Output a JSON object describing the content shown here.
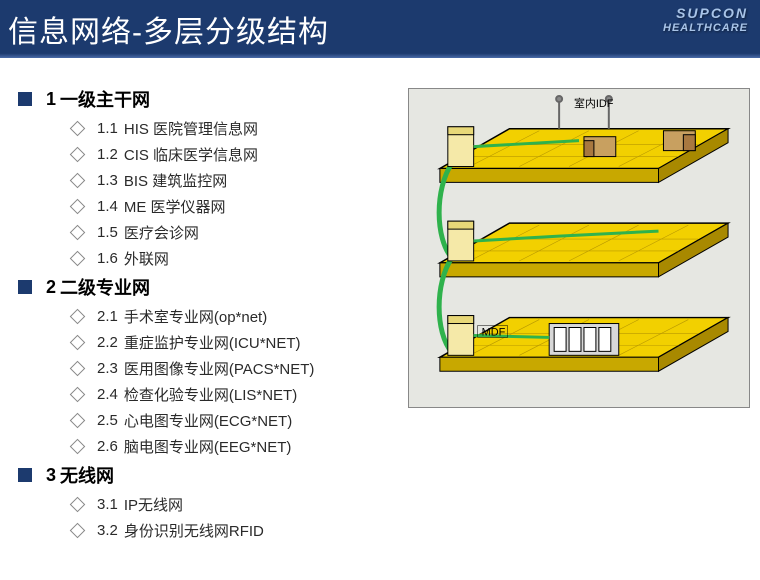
{
  "header": {
    "title": "信息网络-多层分级结构",
    "logo_line1": "SUPCON",
    "logo_line2": "HEALTHCARE"
  },
  "colors": {
    "header_bg": "#1c3a6e",
    "bullet_square": "#1c3a6e",
    "text": "#000000",
    "diagram_bg": "#e6e7e2",
    "layer_fill": "#f2d000",
    "layer_stroke": "#000000",
    "cable_green": "#2fb24c",
    "box_fill": "#f5e9a8",
    "rack_fill": "#d0d0d0"
  },
  "outline": [
    {
      "num": "1",
      "text": "一级主干网",
      "items": [
        {
          "num": "1.1",
          "text": "HIS 医院管理信息网"
        },
        {
          "num": "1.2",
          "text": "CIS 临床医学信息网"
        },
        {
          "num": "1.3",
          "text": "BIS 建筑监控网"
        },
        {
          "num": "1.4",
          "text": "ME 医学仪器网"
        },
        {
          "num": "1.5",
          "text": "医疗会诊网"
        },
        {
          "num": "1.6",
          "text": "外联网"
        }
      ]
    },
    {
      "num": "2",
      "text": "二级专业网",
      "items": [
        {
          "num": "2.1",
          "text": "手术室专业网(op*net)"
        },
        {
          "num": "2.2",
          "text": "重症监护专业网(ICU*NET)"
        },
        {
          "num": "2.3",
          "text": "医用图像专业网(PACS*NET)"
        },
        {
          "num": "2.4",
          "text": "检查化验专业网(LIS*NET)"
        },
        {
          "num": "2.5",
          "text": "心电图专业网(ECG*NET)"
        },
        {
          "num": "2.6",
          "text": "脑电图专业网(EEG*NET)"
        }
      ]
    },
    {
      "num": "3",
      "text": "无线网",
      "items": [
        {
          "num": "3.1",
          "text": "IP无线网"
        },
        {
          "num": "3.2",
          "text": "身份识别无线网RFID"
        }
      ]
    }
  ],
  "diagram": {
    "type": "infographic",
    "label_top": "室内IDF",
    "label_bottom": "MDF",
    "layers": 3,
    "layer_fill": "#f2d000",
    "layer_stroke": "#000000",
    "cable_color": "#2fb24c",
    "server_box_fill": "#f5e9a8",
    "desk_fill": "#c8a060",
    "rack_fill": "#d8d8d8",
    "background": "#e6e7e2"
  }
}
